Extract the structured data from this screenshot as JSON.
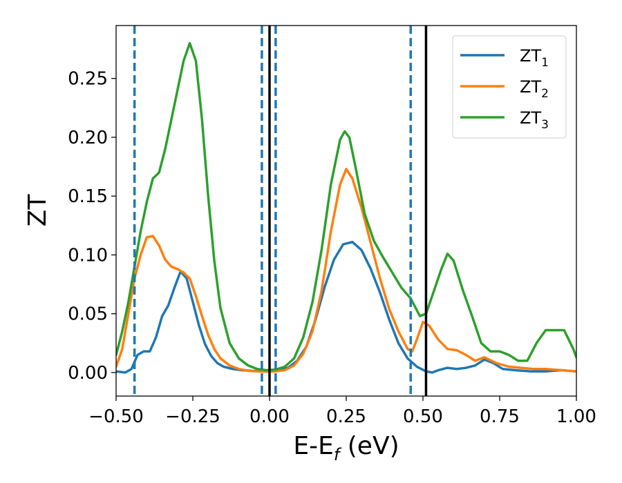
{
  "chart_data": {
    "type": "line",
    "xlabel": {
      "main": "E-E",
      "sub": "f",
      "suffix": " (eV)"
    },
    "ylabel": "ZT",
    "xlim": [
      -0.5,
      1.0
    ],
    "ylim": [
      -0.02,
      0.295
    ],
    "x_ticks": [
      -0.5,
      -0.25,
      0.0,
      0.25,
      0.5,
      0.75,
      1.0
    ],
    "x_tick_labels": [
      "−0.50",
      "−0.25",
      "0.00",
      "0.25",
      "0.50",
      "0.75",
      "1.00"
    ],
    "y_ticks": [
      0.0,
      0.05,
      0.1,
      0.15,
      0.2,
      0.25
    ],
    "y_tick_labels": [
      "0.00",
      "0.05",
      "0.10",
      "0.15",
      "0.20",
      "0.25"
    ],
    "grid": false,
    "legend_position": "top-right",
    "series": [
      {
        "name": "ZT",
        "sub": "1",
        "color": "#1f77b4",
        "x": [
          -0.5,
          -0.47,
          -0.45,
          -0.43,
          -0.41,
          -0.39,
          -0.37,
          -0.35,
          -0.33,
          -0.31,
          -0.29,
          -0.27,
          -0.25,
          -0.23,
          -0.21,
          -0.19,
          -0.17,
          -0.15,
          -0.12,
          -0.09,
          -0.06,
          -0.03,
          0.0,
          0.03,
          0.06,
          0.09,
          0.12,
          0.15,
          0.18,
          0.21,
          0.24,
          0.27,
          0.3,
          0.33,
          0.36,
          0.39,
          0.42,
          0.45,
          0.48,
          0.51,
          0.53,
          0.55,
          0.58,
          0.61,
          0.64,
          0.67,
          0.7,
          0.73,
          0.76,
          0.8,
          0.85,
          0.9,
          0.95,
          1.0
        ],
        "y": [
          0.001,
          0.0,
          0.003,
          0.015,
          0.018,
          0.018,
          0.03,
          0.048,
          0.057,
          0.072,
          0.086,
          0.08,
          0.06,
          0.04,
          0.024,
          0.014,
          0.008,
          0.005,
          0.003,
          0.002,
          0.0015,
          0.0012,
          0.0015,
          0.002,
          0.004,
          0.01,
          0.022,
          0.045,
          0.073,
          0.096,
          0.109,
          0.111,
          0.104,
          0.088,
          0.068,
          0.045,
          0.025,
          0.012,
          0.005,
          0.001,
          0.0,
          0.002,
          0.004,
          0.003,
          0.004,
          0.006,
          0.011,
          0.008,
          0.003,
          0.002,
          0.001,
          0.001,
          0.002,
          0.001
        ]
      },
      {
        "name": "ZT",
        "sub": "2",
        "color": "#ff7f0e",
        "x": [
          -0.5,
          -0.48,
          -0.46,
          -0.44,
          -0.42,
          -0.4,
          -0.38,
          -0.36,
          -0.34,
          -0.32,
          -0.3,
          -0.28,
          -0.26,
          -0.24,
          -0.22,
          -0.2,
          -0.18,
          -0.16,
          -0.13,
          -0.1,
          -0.07,
          -0.04,
          -0.01,
          0.02,
          0.05,
          0.08,
          0.11,
          0.14,
          0.17,
          0.2,
          0.23,
          0.25,
          0.27,
          0.3,
          0.33,
          0.36,
          0.39,
          0.42,
          0.45,
          0.465,
          0.48,
          0.5,
          0.52,
          0.55,
          0.58,
          0.61,
          0.64,
          0.67,
          0.7,
          0.74,
          0.78,
          0.82,
          0.86,
          0.9,
          0.95,
          1.0
        ],
        "y": [
          0.005,
          0.02,
          0.05,
          0.08,
          0.1,
          0.115,
          0.116,
          0.108,
          0.096,
          0.09,
          0.088,
          0.085,
          0.08,
          0.065,
          0.048,
          0.032,
          0.02,
          0.012,
          0.006,
          0.003,
          0.0015,
          0.001,
          0.0008,
          0.001,
          0.002,
          0.006,
          0.016,
          0.035,
          0.07,
          0.12,
          0.16,
          0.173,
          0.165,
          0.14,
          0.11,
          0.08,
          0.054,
          0.035,
          0.02,
          0.018,
          0.028,
          0.043,
          0.04,
          0.028,
          0.02,
          0.019,
          0.015,
          0.01,
          0.013,
          0.008,
          0.005,
          0.004,
          0.003,
          0.003,
          0.002,
          0.001
        ]
      },
      {
        "name": "ZT",
        "sub": "3",
        "color": "#2ca02c",
        "x": [
          -0.5,
          -0.48,
          -0.46,
          -0.44,
          -0.42,
          -0.4,
          -0.38,
          -0.36,
          -0.34,
          -0.32,
          -0.3,
          -0.28,
          -0.26,
          -0.24,
          -0.22,
          -0.2,
          -0.18,
          -0.16,
          -0.13,
          -0.1,
          -0.07,
          -0.04,
          -0.01,
          0.02,
          0.05,
          0.08,
          0.11,
          0.14,
          0.17,
          0.2,
          0.23,
          0.245,
          0.26,
          0.28,
          0.31,
          0.34,
          0.37,
          0.4,
          0.43,
          0.46,
          0.49,
          0.51,
          0.53,
          0.56,
          0.58,
          0.6,
          0.63,
          0.66,
          0.69,
          0.72,
          0.75,
          0.78,
          0.81,
          0.84,
          0.87,
          0.9,
          0.93,
          0.96,
          0.99,
          1.0
        ],
        "y": [
          0.015,
          0.035,
          0.06,
          0.09,
          0.12,
          0.145,
          0.165,
          0.17,
          0.19,
          0.215,
          0.24,
          0.265,
          0.28,
          0.265,
          0.215,
          0.15,
          0.095,
          0.055,
          0.025,
          0.012,
          0.006,
          0.003,
          0.002,
          0.0025,
          0.005,
          0.012,
          0.03,
          0.06,
          0.105,
          0.16,
          0.198,
          0.205,
          0.2,
          0.175,
          0.135,
          0.112,
          0.098,
          0.085,
          0.072,
          0.063,
          0.048,
          0.05,
          0.065,
          0.088,
          0.101,
          0.095,
          0.07,
          0.048,
          0.025,
          0.018,
          0.018,
          0.015,
          0.01,
          0.01,
          0.025,
          0.036,
          0.036,
          0.036,
          0.02,
          0.013
        ]
      }
    ],
    "vertical_lines": [
      {
        "x": -0.44,
        "style": "dashed",
        "color": "#1f77b4"
      },
      {
        "x": -0.025,
        "style": "dashed",
        "color": "#1f77b4"
      },
      {
        "x": 0.0,
        "style": "solid",
        "color": "#000000"
      },
      {
        "x": 0.02,
        "style": "dashed",
        "color": "#1f77b4"
      },
      {
        "x": 0.46,
        "style": "dashed",
        "color": "#1f77b4"
      },
      {
        "x": 0.51,
        "style": "solid",
        "color": "#000000"
      }
    ]
  }
}
